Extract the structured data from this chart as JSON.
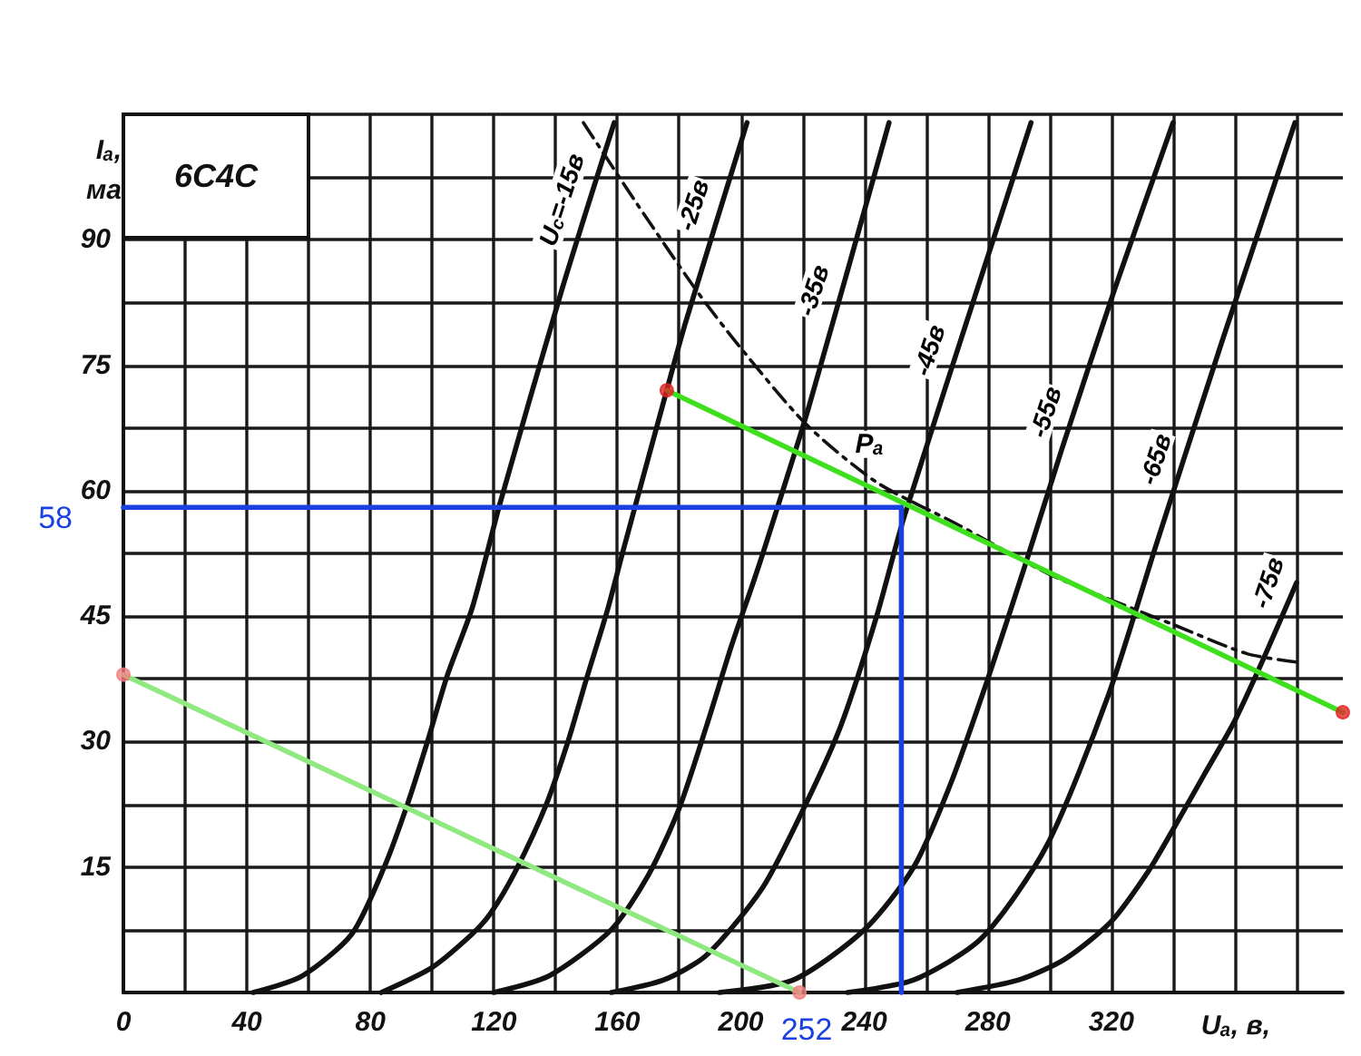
{
  "chart_data": {
    "type": "line",
    "title": "6С4С",
    "xlabel": "Uₐ, в,",
    "ylabel": "Iₐ, ма",
    "xlim": [
      0,
      395
    ],
    "xticks": [
      0,
      {
        "value": 20,
        "label": null
      },
      40,
      {
        "value": 60,
        "label": null
      },
      80,
      {
        "value": 100,
        "label": null
      },
      120,
      {
        "value": 140,
        "label": null
      },
      160,
      {
        "value": 180,
        "label": null
      },
      200,
      {
        "value": 220,
        "label": null
      },
      240,
      {
        "value": 260,
        "label": null
      },
      280,
      {
        "value": 300,
        "label": null
      },
      320,
      {
        "value": 340,
        "label": null
      },
      {
        "value": 360,
        "label": null
      },
      {
        "value": 380,
        "label": null
      }
    ],
    "ylim": [
      0,
      105
    ],
    "yticks": [
      {
        "value": 0,
        "label": null
      },
      {
        "value": 7.5,
        "label": null
      },
      15,
      {
        "value": 22.5,
        "label": null
      },
      30,
      {
        "value": 37.5,
        "label": null
      },
      45,
      {
        "value": 52.5,
        "label": null
      },
      60,
      {
        "value": 67.5,
        "label": null
      },
      75,
      {
        "value": 82.5,
        "label": null
      },
      90,
      {
        "value": 97.5,
        "label": null
      },
      {
        "value": 105,
        "label": null
      }
    ],
    "grid": true,
    "marker": "none",
    "line_style": "solid",
    "series": [
      {
        "name": "U$_{c}$=-15в",
        "color": "#111111",
        "x": [
          42,
          58,
          74,
          84.5,
          92,
          98.5,
          105,
          113,
          122,
          142,
          159
        ],
        "values": [
          0,
          2,
          7,
          15,
          22.5,
          30,
          38,
          46,
          58.5,
          84,
          104
        ]
      },
      {
        "name": "-25в",
        "color": "#111111",
        "x": [
          83.5,
          100,
          113,
          119,
          127,
          137,
          144,
          150,
          157,
          162,
          176,
          182,
          202
        ],
        "values": [
          0,
          3,
          7,
          9.5,
          14.5,
          22.5,
          30,
          37.5,
          46,
          53,
          72,
          80,
          104
        ]
      },
      {
        "name": "-35в",
        "color": "#111111",
        "x": [
          120,
          138,
          158,
          170,
          180,
          189,
          197,
          204,
          208,
          222,
          248
        ],
        "values": [
          0,
          2,
          7.5,
          14,
          22,
          32,
          41.5,
          49,
          53.5,
          70,
          104
        ]
      },
      {
        "name": "-45в",
        "color": "#111111",
        "x": [
          158,
          175,
          189,
          207,
          221,
          232.5,
          244,
          253,
          280,
          294
        ],
        "values": [
          0,
          1.5,
          4.5,
          12.5,
          22.5,
          32,
          45,
          57,
          88,
          104
        ]
      },
      {
        "name": "-55в",
        "color": "#111111",
        "x": [
          193,
          217,
          240,
          256,
          268,
          280,
          292,
          304,
          321,
          340
        ],
        "values": [
          0,
          1.5,
          7.5,
          15,
          25,
          37.5,
          51,
          65,
          84,
          104
        ]
      },
      {
        "name": "-65в",
        "color": "#111111",
        "x": [
          234.5,
          256,
          278,
          299,
          319,
          334.5,
          356,
          379.5
        ],
        "values": [
          0,
          1.5,
          6.5,
          17.5,
          35.5,
          53.5,
          78,
          104
        ]
      },
      {
        "name": "-75в",
        "color": "#111111",
        "x": [
          270,
          290,
          305,
          320,
          332,
          340,
          350,
          360,
          370,
          380
        ],
        "values": [
          0,
          1.5,
          4,
          8.5,
          14.5,
          19.5,
          26,
          32.5,
          40.5,
          49
        ]
      },
      {
        "name": "Pₐ",
        "line_style": "dashed",
        "color": "#111111",
        "x": [
          149,
          166,
          185.5,
          199,
          221,
          244,
          270,
          300,
          340,
          364,
          380
        ],
        "values": [
          104,
          94.5,
          84,
          77.5,
          68,
          61,
          56,
          50,
          44,
          40.5,
          39.5
        ]
      },
      {
        "color": "#90e880",
        "x": [
          0,
          219
        ],
        "values": [
          38,
          0
        ]
      },
      {
        "color": "#3ee01e",
        "x": [
          176,
          395
        ],
        "values": [
          72,
          33.5
        ]
      },
      {
        "color": "#1a40e0",
        "x": [
          0,
          252,
          252
        ],
        "values": [
          58,
          58,
          0
        ]
      },
      {
        "type": "scatter",
        "marker": "circle",
        "colors": [
          "#f08080",
          "#f08080",
          "#e02424",
          "#e02424"
        ],
        "x": [
          0,
          219,
          176,
          395
        ],
        "values": [
          38,
          0,
          72,
          33.5
        ]
      }
    ],
    "annotations": [
      {
        "text": "58",
        "x": 0,
        "y": 58
      },
      {
        "text": "252",
        "x": 252,
        "y": 0
      }
    ]
  }
}
